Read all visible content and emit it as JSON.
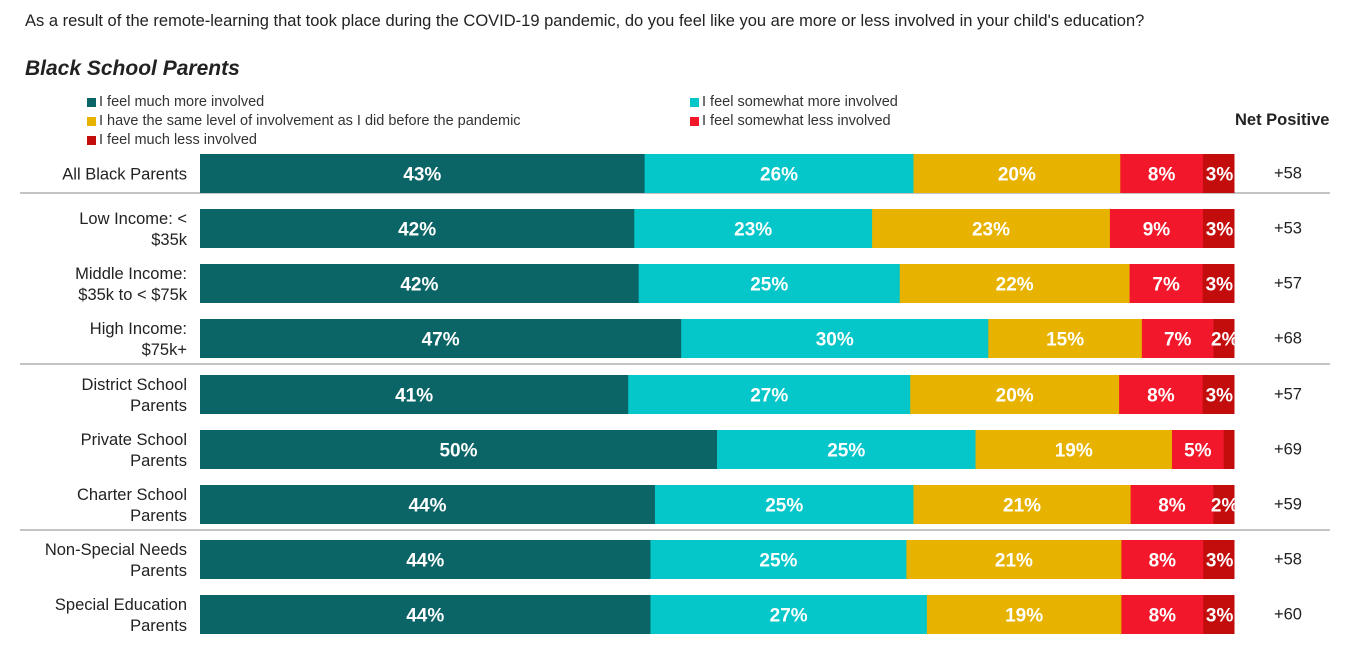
{
  "question": "As a result of the remote-learning that took place during the COVID-19 pandemic, do you feel like you are more or less involved in your child's education?",
  "subtitle": "Black School Parents",
  "net_header": "Net Positive",
  "chart_data": {
    "type": "bar",
    "orientation": "horizontal",
    "stacked": true,
    "percent_stacked": true,
    "title": "Black School Parents",
    "legend_position": "top",
    "categories": [
      "All Black Parents",
      "Low Income: < $35k",
      "Middle Income: $35k to < $75k",
      "High Income: $75k+",
      "District School Parents",
      "Private School Parents",
      "Charter School Parents",
      "Non-Special Needs Parents",
      "Special Education Parents"
    ],
    "category_lines": [
      [
        "All Black Parents"
      ],
      [
        "Low Income: <",
        "$35k"
      ],
      [
        "Middle Income:",
        "$35k to < $75k"
      ],
      [
        "High Income:",
        "$75k+"
      ],
      [
        "District School",
        "Parents"
      ],
      [
        "Private School",
        "Parents"
      ],
      [
        "Charter School",
        "Parents"
      ],
      [
        "Non-Special Needs",
        "Parents"
      ],
      [
        "Special Education",
        "Parents"
      ]
    ],
    "series": [
      {
        "name": "I feel much more involved",
        "color": "#0b6466",
        "values": [
          43,
          42,
          42,
          47,
          41,
          50,
          44,
          44,
          44
        ]
      },
      {
        "name": "I feel somewhat more involved",
        "color": "#05c6c9",
        "values": [
          26,
          23,
          25,
          30,
          27,
          25,
          25,
          25,
          27
        ]
      },
      {
        "name": "I have the same level of involvement as I did before the pandemic",
        "color": "#e7b300",
        "values": [
          20,
          23,
          22,
          15,
          20,
          19,
          21,
          21,
          19
        ]
      },
      {
        "name": "I feel somewhat less involved",
        "color": "#f2172a",
        "values": [
          8,
          9,
          7,
          7,
          8,
          5,
          8,
          8,
          8
        ]
      },
      {
        "name": "I feel much less involved",
        "color": "#c30c0c",
        "values": [
          3,
          3,
          3,
          2,
          3,
          1,
          2,
          3,
          3
        ]
      }
    ],
    "data_labels": [
      [
        "43%",
        "26%",
        "20%",
        "8%",
        "3%"
      ],
      [
        "42%",
        "23%",
        "23%",
        "9%",
        "3%"
      ],
      [
        "42%",
        "25%",
        "22%",
        "7%",
        "3%"
      ],
      [
        "47%",
        "30%",
        "15%",
        "7%",
        "2%"
      ],
      [
        "41%",
        "27%",
        "20%",
        "8%",
        "3%"
      ],
      [
        "50%",
        "25%",
        "19%",
        "5%",
        ""
      ],
      [
        "44%",
        "25%",
        "21%",
        "8%",
        "2%"
      ],
      [
        "44%",
        "25%",
        "21%",
        "8%",
        "3%"
      ],
      [
        "44%",
        "27%",
        "19%",
        "8%",
        "3%"
      ]
    ],
    "net_positive": [
      "+58",
      "+53",
      "+57",
      "+68",
      "+57",
      "+69",
      "+59",
      "+58",
      "+60"
    ],
    "group_separators_after": [
      0,
      3,
      6
    ]
  }
}
